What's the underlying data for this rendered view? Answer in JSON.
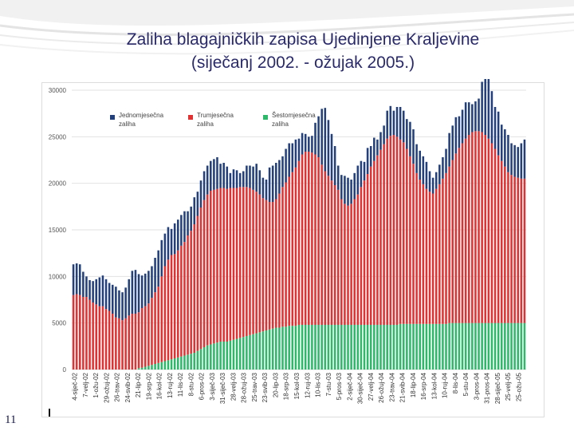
{
  "slide": {
    "title_line1": "Zaliha blagajničkih zapisa Ujedinjene Kraljevine",
    "title_line2": "(siječanj 2002. - ožujak 2005.)",
    "number": "11"
  },
  "colors": {
    "title": "#2a2a6a",
    "series": [
      "#24407a",
      "#e03232",
      "#2eb86a"
    ]
  },
  "chart_data": {
    "type": "bar",
    "stacked": true,
    "ylim": [
      0,
      30000
    ],
    "yticks": [
      "0",
      "5000",
      "10000",
      "15000",
      "20000",
      "25000",
      "30000"
    ],
    "legend_position": "top-left",
    "grid": true,
    "series": [
      {
        "name": "Jednomjesečna zaliha",
        "color": "#24407a",
        "values": [
          3300,
          3300,
          3300,
          2700,
          2200,
          2100,
          2300,
          2700,
          3100,
          3300,
          3200,
          3000,
          3100,
          3300,
          3000,
          3000,
          3300,
          3900,
          4600,
          4700,
          4100,
          3500,
          3500,
          3500,
          3400,
          3700,
          3900,
          3900,
          3500,
          3500,
          2800,
          3300,
          3300,
          3300,
          3300,
          2600,
          2600,
          2900,
          2600,
          2900,
          3100,
          3100,
          3200,
          3300,
          3400,
          2600,
          2700,
          2400,
          1600,
          2000,
          1900,
          1500,
          1700,
          2300,
          2400,
          2500,
          3000,
          2600,
          2200,
          2200,
          3700,
          3900,
          3900,
          3600,
          3300,
          3600,
          3600,
          3100,
          3000,
          2400,
          2300,
          1900,
          1600,
          1800,
          3400,
          4400,
          6000,
          6800,
          6000,
          5000,
          4200,
          2600,
          2600,
          3000,
          3000,
          2600,
          2800,
          3100,
          2800,
          2000,
          2800,
          2200,
          2500,
          1700,
          1900,
          2000,
          3000,
          3200,
          2600,
          3200,
          3500,
          3400,
          3200,
          3700,
          3700,
          3100,
          3100,
          3000,
          2900,
          2200,
          1700,
          1800,
          2100,
          2300,
          2600,
          3600,
          3700,
          3900,
          3400,
          3600,
          3900,
          3500,
          3000,
          3200,
          3500,
          5400,
          6000,
          6400,
          5600,
          4500,
          4700,
          3900,
          4000,
          4000,
          3400,
          3400,
          3300,
          3800,
          4200
        ]
      },
      {
        "name": "Trumjesečna zaliha",
        "color": "#e03232",
        "values": [
          8000,
          8100,
          8000,
          7800,
          7800,
          7500,
          7200,
          7000,
          6800,
          6800,
          6500,
          6300,
          6000,
          5600,
          5500,
          5300,
          5500,
          5800,
          6000,
          6000,
          6000,
          6400,
          6500,
          6700,
          7200,
          7700,
          8200,
          9200,
          10200,
          10800,
          11200,
          11200,
          11500,
          11900,
          12200,
          12800,
          13200,
          13800,
          14500,
          15200,
          15800,
          16200,
          16500,
          16500,
          16500,
          16500,
          16500,
          16400,
          16400,
          16300,
          16200,
          16200,
          16100,
          16000,
          15800,
          15500,
          15200,
          14800,
          14300,
          14000,
          13700,
          13600,
          13800,
          14400,
          15000,
          15500,
          16000,
          16500,
          17000,
          17600,
          18300,
          18600,
          18600,
          18500,
          18300,
          18000,
          17200,
          16500,
          16000,
          15500,
          15000,
          14500,
          13500,
          13000,
          12800,
          13000,
          13500,
          14000,
          14800,
          15500,
          16200,
          17000,
          17600,
          18200,
          18800,
          19400,
          20000,
          20300,
          20400,
          20200,
          19800,
          19500,
          18800,
          18000,
          17200,
          16200,
          15500,
          15000,
          14500,
          14200,
          14000,
          14500,
          15000,
          15600,
          16200,
          16800,
          17500,
          18200,
          18800,
          19300,
          19800,
          20200,
          20500,
          20600,
          20600,
          20500,
          20200,
          19800,
          19300,
          18700,
          18000,
          17400,
          16800,
          16200,
          15900,
          15700,
          15600,
          15500,
          15500
        ]
      },
      {
        "name": "Šestomjesečna zaliha",
        "color": "#2eb86a",
        "values": [
          0,
          0,
          0,
          0,
          0,
          0,
          0,
          0,
          0,
          0,
          0,
          0,
          0,
          0,
          0,
          0,
          0,
          0,
          0,
          0,
          150,
          200,
          300,
          400,
          500,
          600,
          700,
          800,
          900,
          1000,
          1100,
          1200,
          1300,
          1400,
          1500,
          1600,
          1700,
          1800,
          2000,
          2200,
          2400,
          2600,
          2700,
          2800,
          2900,
          3000,
          3000,
          3000,
          3100,
          3200,
          3300,
          3400,
          3500,
          3600,
          3700,
          3800,
          3900,
          4000,
          4100,
          4200,
          4300,
          4400,
          4500,
          4500,
          4600,
          4600,
          4700,
          4700,
          4700,
          4800,
          4800,
          4800,
          4800,
          4800,
          4800,
          4800,
          4800,
          4800,
          4800,
          4800,
          4800,
          4800,
          4800,
          4800,
          4800,
          4800,
          4800,
          4800,
          4800,
          4800,
          4800,
          4800,
          4800,
          4800,
          4800,
          4800,
          4800,
          4800,
          4800,
          4800,
          4900,
          4900,
          4900,
          4900,
          4900,
          4900,
          4900,
          4900,
          4900,
          4900,
          4900,
          4900,
          4900,
          4900,
          4900,
          5000,
          5000,
          5000,
          5000,
          5000,
          5000,
          5000,
          5000,
          5000,
          5000,
          5000,
          5000,
          5000,
          5000,
          5000,
          5000,
          5000,
          5000,
          5000,
          5000,
          5000,
          5000,
          5000,
          5000
        ]
      }
    ],
    "x_labels": [
      "4-siječ-02",
      "7-velj-02",
      "1-ožu-02",
      "29-ožuj-02",
      "26-trav-02",
      "24-svib-02",
      "21-lip-02",
      "19-srp-02",
      "16-kol-02",
      "13-ruj-02",
      "11-lis-02",
      "8-stu-02",
      "6-pros-02",
      "3-siječ-03",
      "31-siječ-03",
      "28-velj-03",
      "28-ožuj-03",
      "25-trav-03",
      "23-svib-03",
      "20-lip-03",
      "18-srp-03",
      "15-kol-03",
      "12-ruj-03",
      "10-lis-03",
      "7-stu-03",
      "5-pros-03",
      "2-siječ-04",
      "30-siječ-04",
      "27-velj-04",
      "26-ožuj-04",
      "23-trav-04",
      "21-svib-04",
      "18-lip-04",
      "16-srp-04",
      "13-kol-04",
      "10-ruj-04",
      "8-lis-04",
      "5-stu-04",
      "3-pros-04",
      "31-pros-04",
      "28-siječ-05",
      "25-velj-05",
      "25-ožu-05"
    ]
  }
}
